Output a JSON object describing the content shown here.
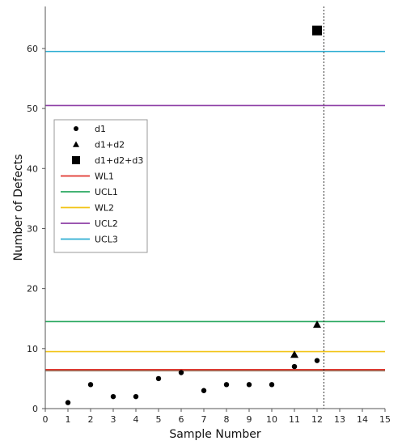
{
  "chart_data": {
    "type": "scatter",
    "xlabel": "Sample Number",
    "ylabel": "Number of Defects",
    "xlim": [
      0,
      15
    ],
    "ylim": [
      0,
      67
    ],
    "x_ticks": [
      0,
      1,
      2,
      3,
      4,
      5,
      6,
      7,
      8,
      9,
      10,
      11,
      12,
      13,
      14,
      15
    ],
    "y_ticks": [
      0,
      10,
      20,
      30,
      40,
      50,
      60
    ],
    "grid": false,
    "legend_position": "left",
    "vertical_reference_x": 12.3,
    "series": [
      {
        "name": "d1",
        "marker": "circle",
        "color": "#000000",
        "points": [
          [
            1,
            1
          ],
          [
            2,
            4
          ],
          [
            3,
            2
          ],
          [
            4,
            2
          ],
          [
            5,
            5
          ],
          [
            6,
            6
          ],
          [
            7,
            3
          ],
          [
            8,
            4
          ],
          [
            9,
            4
          ],
          [
            10,
            4
          ],
          [
            11,
            7
          ],
          [
            12,
            8
          ]
        ]
      },
      {
        "name": "d1+d2",
        "marker": "triangle",
        "color": "#000000",
        "points": [
          [
            11,
            9
          ],
          [
            12,
            14
          ]
        ]
      },
      {
        "name": "d1+d2+d3",
        "marker": "square",
        "color": "#000000",
        "points": [
          [
            12,
            63
          ]
        ]
      }
    ],
    "lines": [
      {
        "name": "WL1",
        "value": 6.5,
        "color": "#e0342c"
      },
      {
        "name": "UCL1",
        "value": 14.5,
        "color": "#2aa860"
      },
      {
        "name": "WL2",
        "value": 9.5,
        "color": "#f2c418"
      },
      {
        "name": "UCL2",
        "value": 50.5,
        "color": "#8e3fa6"
      },
      {
        "name": "UCL3",
        "value": 59.5,
        "color": "#2eaed2"
      }
    ],
    "wl1_extra_color": "#6b3a1a"
  }
}
